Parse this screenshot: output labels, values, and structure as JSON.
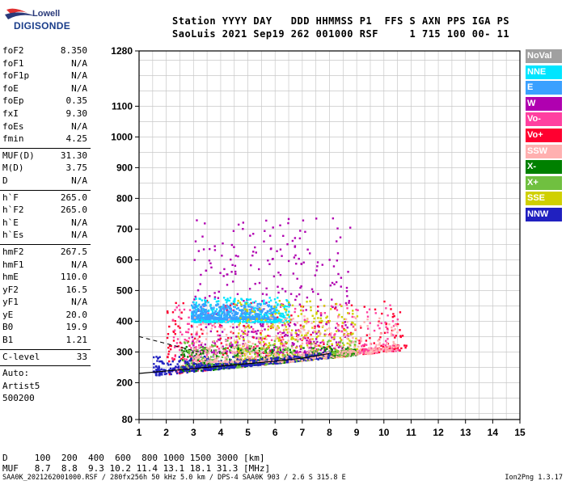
{
  "logo": {
    "line1": "Lowell",
    "line2": "DIGISONDE"
  },
  "header": {
    "line1": "Station YYYY DAY   DDD HHMMSS P1  FFS S AXN PPS IGA PS",
    "line2": "SaoLuis 2021 Sep19 262 001000 RSF     1 715 100 00- 11"
  },
  "params": [
    {
      "group": [
        {
          "label": "foF2",
          "value": "8.350"
        },
        {
          "label": "foF1",
          "value": "N/A"
        },
        {
          "label": "foF1p",
          "value": "N/A"
        },
        {
          "label": "foE",
          "value": "N/A"
        },
        {
          "label": "foEp",
          "value": "0.35"
        },
        {
          "label": "fxI",
          "value": "9.30"
        },
        {
          "label": "foEs",
          "value": "N/A"
        },
        {
          "label": "fmin",
          "value": "4.25"
        }
      ]
    },
    {
      "group": [
        {
          "label": "MUF(D)",
          "value": "31.30"
        },
        {
          "label": "M(D)",
          "value": "3.75"
        },
        {
          "label": "D",
          "value": "N/A"
        }
      ]
    },
    {
      "group": [
        {
          "label": "h`F",
          "value": "265.0"
        },
        {
          "label": "h`F2",
          "value": "265.0"
        },
        {
          "label": "h`E",
          "value": "N/A"
        },
        {
          "label": "h`Es",
          "value": "N/A"
        }
      ]
    },
    {
      "group": [
        {
          "label": "hmF2",
          "value": "267.5"
        },
        {
          "label": "hmF1",
          "value": "N/A"
        },
        {
          "label": "hmE",
          "value": "110.0"
        },
        {
          "label": "yF2",
          "value": "16.5"
        },
        {
          "label": "yF1",
          "value": "N/A"
        },
        {
          "label": "yE",
          "value": "20.0"
        },
        {
          "label": "B0",
          "value": "19.9"
        },
        {
          "label": "B1",
          "value": "1.21"
        }
      ]
    },
    {
      "group": [
        {
          "label": "C-level",
          "value": "33"
        }
      ]
    }
  ],
  "autoscaling": [
    "Auto:",
    "Artist5",
    "500200"
  ],
  "bottom": {
    "d_line": "D     100  200  400  600  800 1000 1500 3000 [km]",
    "muf_line": "MUF   8.7  8.8  9.3 10.2 11.4 13.1 18.1 31.3 [MHz]"
  },
  "footer": {
    "left": "SAA0K_2021262001000.RSF / 280fx256h 50 kHz 5.0 km / DPS-4 SAA0K 903 / 2.6 S 315.8 E",
    "right": "Ion2Png 1.3.17"
  },
  "legend": [
    {
      "label": "NoVal",
      "color": "#a0a0a0"
    },
    {
      "label": "NNE",
      "color": "#00e5ff"
    },
    {
      "label": "E",
      "color": "#3aa0ff"
    },
    {
      "label": "W",
      "color": "#b000b0"
    },
    {
      "label": "Vo-",
      "color": "#ff40a0"
    },
    {
      "label": "Vo+",
      "color": "#ff0030"
    },
    {
      "label": "SSW",
      "color": "#ffb0b0"
    },
    {
      "label": "X-",
      "color": "#008000"
    },
    {
      "label": "X+",
      "color": "#70c040"
    },
    {
      "label": "SSE",
      "color": "#d0d000"
    },
    {
      "label": "NNW",
      "color": "#2020c0"
    }
  ],
  "chart_data": {
    "type": "scatter",
    "title": "",
    "xlabel": "",
    "ylabel": "",
    "x_ticks": [
      1,
      2,
      3,
      4,
      5,
      6,
      7,
      8,
      9,
      10,
      11,
      12,
      13,
      14,
      15
    ],
    "y_ticks": [
      80,
      200,
      300,
      400,
      500,
      600,
      700,
      800,
      900,
      1000,
      1100,
      1280
    ],
    "xlim": [
      1,
      15
    ],
    "ylim": [
      80,
      1280
    ],
    "grid": true,
    "legend_position": "right",
    "scaled_profile": {
      "x": [
        1.0,
        2.0,
        3.0,
        4.0,
        5.0,
        6.0,
        7.0,
        7.5,
        8.0
      ],
      "y": [
        230,
        238,
        246,
        254,
        262,
        270,
        280,
        287,
        295
      ]
    },
    "trace_clusters": [
      {
        "name": "W",
        "color": "#b000b0",
        "x_range": [
          2.9,
          8.8
        ],
        "y_range": [
          300,
          740
        ]
      },
      {
        "name": "Vo+",
        "color": "#ff0030",
        "x_range": [
          2.0,
          10.9
        ],
        "y_range": [
          230,
          470
        ]
      },
      {
        "name": "Vo-",
        "color": "#ff40a0",
        "x_range": [
          2.2,
          10.5
        ],
        "y_range": [
          240,
          460
        ]
      },
      {
        "name": "NNE",
        "color": "#00e5ff",
        "x_range": [
          2.9,
          6.5
        ],
        "y_range": [
          400,
          480
        ]
      },
      {
        "name": "E",
        "color": "#3aa0ff",
        "x_range": [
          2.9,
          6.0
        ],
        "y_range": [
          410,
          460
        ]
      },
      {
        "name": "SSE",
        "color": "#d0d000",
        "x_range": [
          4.5,
          9.0
        ],
        "y_range": [
          260,
          470
        ]
      },
      {
        "name": "X-",
        "color": "#008000",
        "x_range": [
          2.5,
          9.0
        ],
        "y_range": [
          240,
          320
        ]
      },
      {
        "name": "X+",
        "color": "#70c040",
        "x_range": [
          2.5,
          9.0
        ],
        "y_range": [
          250,
          340
        ]
      },
      {
        "name": "NNW",
        "color": "#2020c0",
        "x_range": [
          1.5,
          8.0
        ],
        "y_range": [
          215,
          290
        ]
      },
      {
        "name": "SSW",
        "color": "#ffb0b0",
        "x_range": [
          3.0,
          10.5
        ],
        "y_range": [
          270,
          420
        ]
      }
    ]
  }
}
